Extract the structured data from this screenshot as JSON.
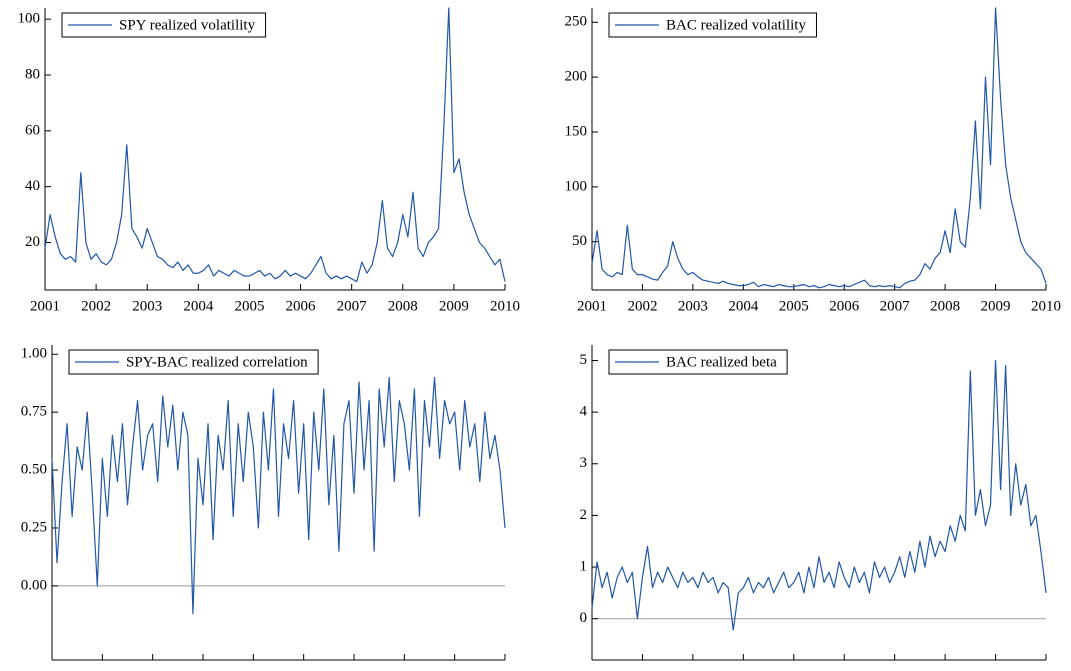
{
  "chart_data": [
    {
      "type": "line",
      "xlim": [
        2001,
        2010
      ],
      "xticks": [
        2001,
        2002,
        2003,
        2004,
        2005,
        2006,
        2007,
        2008,
        2009,
        2010
      ],
      "ylim": [
        3,
        104
      ],
      "yticks": [
        20,
        40,
        60,
        80,
        100
      ],
      "legend": "top-left",
      "zero_line": false,
      "x": [
        2001.0,
        2001.1,
        2001.2,
        2001.3,
        2001.4,
        2001.5,
        2001.6,
        2001.7,
        2001.8,
        2001.9,
        2002.0,
        2002.1,
        2002.2,
        2002.3,
        2002.4,
        2002.5,
        2002.6,
        2002.7,
        2002.8,
        2002.9,
        2003.0,
        2003.1,
        2003.2,
        2003.3,
        2003.4,
        2003.5,
        2003.6,
        2003.7,
        2003.8,
        2003.9,
        2004.0,
        2004.1,
        2004.2,
        2004.3,
        2004.4,
        2004.5,
        2004.6,
        2004.7,
        2004.8,
        2004.9,
        2005.0,
        2005.1,
        2005.2,
        2005.3,
        2005.4,
        2005.5,
        2005.6,
        2005.7,
        2005.8,
        2005.9,
        2006.0,
        2006.1,
        2006.2,
        2006.3,
        2006.4,
        2006.5,
        2006.6,
        2006.7,
        2006.8,
        2006.9,
        2007.0,
        2007.1,
        2007.2,
        2007.3,
        2007.4,
        2007.5,
        2007.6,
        2007.7,
        2007.8,
        2007.9,
        2008.0,
        2008.1,
        2008.2,
        2008.3,
        2008.4,
        2008.5,
        2008.6,
        2008.7,
        2008.8,
        2008.9,
        2009.0,
        2009.1,
        2009.2,
        2009.3,
        2009.4,
        2009.5,
        2009.6,
        2009.7,
        2009.8,
        2009.9,
        2010.0
      ],
      "series": [
        {
          "name": "SPY realized volatility",
          "color": "#2157a6",
          "values": [
            18,
            30,
            22,
            16,
            14,
            15,
            13,
            45,
            20,
            14,
            16,
            13,
            12,
            14,
            20,
            30,
            55,
            25,
            22,
            18,
            25,
            20,
            15,
            14,
            12,
            11,
            13,
            10,
            12,
            9,
            9,
            10,
            12,
            8,
            10,
            9,
            8,
            10,
            9,
            8,
            8,
            9,
            10,
            8,
            9,
            7,
            8,
            10,
            8,
            9,
            8,
            7,
            9,
            12,
            15,
            9,
            7,
            8,
            7,
            8,
            7,
            6,
            13,
            9,
            12,
            20,
            35,
            18,
            15,
            20,
            30,
            22,
            38,
            18,
            15,
            20,
            22,
            25,
            60,
            104,
            45,
            50,
            38,
            30,
            25,
            20,
            18,
            15,
            12,
            14,
            6
          ]
        }
      ]
    },
    {
      "type": "line",
      "xlim": [
        2001,
        2010
      ],
      "xticks": [
        2001,
        2002,
        2003,
        2004,
        2005,
        2006,
        2007,
        2008,
        2009,
        2010
      ],
      "ylim": [
        6,
        263
      ],
      "yticks": [
        50,
        100,
        150,
        200,
        250
      ],
      "legend": "top-left",
      "zero_line": false,
      "x": [
        2001.0,
        2001.1,
        2001.2,
        2001.3,
        2001.4,
        2001.5,
        2001.6,
        2001.7,
        2001.8,
        2001.9,
        2002.0,
        2002.1,
        2002.2,
        2002.3,
        2002.4,
        2002.5,
        2002.6,
        2002.7,
        2002.8,
        2002.9,
        2003.0,
        2003.1,
        2003.2,
        2003.3,
        2003.4,
        2003.5,
        2003.6,
        2003.7,
        2003.8,
        2003.9,
        2004.0,
        2004.1,
        2004.2,
        2004.3,
        2004.4,
        2004.5,
        2004.6,
        2004.7,
        2004.8,
        2004.9,
        2005.0,
        2005.1,
        2005.2,
        2005.3,
        2005.4,
        2005.5,
        2005.6,
        2005.7,
        2005.8,
        2005.9,
        2006.0,
        2006.1,
        2006.2,
        2006.3,
        2006.4,
        2006.5,
        2006.6,
        2006.7,
        2006.8,
        2006.9,
        2007.0,
        2007.1,
        2007.2,
        2007.3,
        2007.4,
        2007.5,
        2007.6,
        2007.7,
        2007.8,
        2007.9,
        2008.0,
        2008.1,
        2008.2,
        2008.3,
        2008.4,
        2008.5,
        2008.6,
        2008.7,
        2008.8,
        2008.9,
        2009.0,
        2009.1,
        2009.2,
        2009.3,
        2009.4,
        2009.5,
        2009.6,
        2009.7,
        2009.8,
        2009.9,
        2010.0
      ],
      "series": [
        {
          "name": "BAC realized volatility",
          "color": "#2157a6",
          "values": [
            30,
            60,
            25,
            20,
            18,
            22,
            20,
            65,
            25,
            20,
            20,
            18,
            16,
            15,
            22,
            28,
            50,
            35,
            25,
            20,
            22,
            18,
            15,
            14,
            13,
            12,
            14,
            12,
            11,
            10,
            10,
            11,
            13,
            9,
            11,
            10,
            9,
            11,
            10,
            9,
            9,
            10,
            11,
            9,
            10,
            8,
            9,
            11,
            10,
            9,
            10,
            9,
            11,
            13,
            15,
            10,
            9,
            10,
            9,
            10,
            9,
            8,
            12,
            14,
            15,
            20,
            30,
            25,
            35,
            40,
            60,
            40,
            80,
            50,
            45,
            90,
            160,
            80,
            200,
            120,
            263,
            180,
            120,
            90,
            70,
            50,
            40,
            35,
            30,
            25,
            12
          ]
        }
      ]
    },
    {
      "type": "line",
      "xlim": [
        2001,
        2010
      ],
      "xticks": [
        2001,
        2002,
        2003,
        2004,
        2005,
        2006,
        2007,
        2008,
        2009,
        2010
      ],
      "ylim": [
        -0.32,
        1.04
      ],
      "yticks": [
        {
          "value": 0,
          "label": "0.00"
        },
        {
          "value": 0.25,
          "label": "0.25"
        },
        {
          "value": 0.5,
          "label": "0.50"
        },
        {
          "value": 0.75,
          "label": "0.75"
        },
        {
          "value": 1,
          "label": "1.00"
        }
      ],
      "legend": "top-left",
      "zero_line": true,
      "x": [
        2001.0,
        2001.1,
        2001.2,
        2001.3,
        2001.4,
        2001.5,
        2001.6,
        2001.7,
        2001.8,
        2001.9,
        2002.0,
        2002.1,
        2002.2,
        2002.3,
        2002.4,
        2002.5,
        2002.6,
        2002.7,
        2002.8,
        2002.9,
        2003.0,
        2003.1,
        2003.2,
        2003.3,
        2003.4,
        2003.5,
        2003.6,
        2003.7,
        2003.8,
        2003.9,
        2004.0,
        2004.1,
        2004.2,
        2004.3,
        2004.4,
        2004.5,
        2004.6,
        2004.7,
        2004.8,
        2004.9,
        2005.0,
        2005.1,
        2005.2,
        2005.3,
        2005.4,
        2005.5,
        2005.6,
        2005.7,
        2005.8,
        2005.9,
        2006.0,
        2006.1,
        2006.2,
        2006.3,
        2006.4,
        2006.5,
        2006.6,
        2006.7,
        2006.8,
        2006.9,
        2007.0,
        2007.1,
        2007.2,
        2007.3,
        2007.4,
        2007.5,
        2007.6,
        2007.7,
        2007.8,
        2007.9,
        2008.0,
        2008.1,
        2008.2,
        2008.3,
        2008.4,
        2008.5,
        2008.6,
        2008.7,
        2008.8,
        2008.9,
        2009.0,
        2009.1,
        2009.2,
        2009.3,
        2009.4,
        2009.5,
        2009.6,
        2009.7,
        2009.8,
        2009.9,
        2010.0
      ],
      "series": [
        {
          "name": "SPY-BAC realized correlation",
          "color": "#2157a6",
          "values": [
            0.55,
            0.1,
            0.45,
            0.7,
            0.3,
            0.6,
            0.5,
            0.75,
            0.4,
            0.0,
            0.55,
            0.3,
            0.65,
            0.45,
            0.7,
            0.35,
            0.6,
            0.8,
            0.5,
            0.65,
            0.7,
            0.45,
            0.82,
            0.6,
            0.78,
            0.5,
            0.75,
            0.65,
            -0.12,
            0.55,
            0.35,
            0.7,
            0.2,
            0.65,
            0.5,
            0.8,
            0.3,
            0.7,
            0.45,
            0.75,
            0.6,
            0.25,
            0.75,
            0.5,
            0.85,
            0.3,
            0.7,
            0.55,
            0.8,
            0.4,
            0.7,
            0.2,
            0.75,
            0.5,
            0.85,
            0.35,
            0.65,
            0.15,
            0.7,
            0.8,
            0.4,
            0.88,
            0.5,
            0.8,
            0.15,
            0.85,
            0.6,
            0.9,
            0.45,
            0.8,
            0.7,
            0.5,
            0.85,
            0.3,
            0.8,
            0.6,
            0.9,
            0.55,
            0.8,
            0.7,
            0.75,
            0.5,
            0.8,
            0.6,
            0.7,
            0.45,
            0.75,
            0.55,
            0.65,
            0.5,
            0.25
          ]
        }
      ]
    },
    {
      "type": "line",
      "xlim": [
        2001,
        2010
      ],
      "xticks": [
        2001,
        2002,
        2003,
        2004,
        2005,
        2006,
        2007,
        2008,
        2009,
        2010
      ],
      "ylim": [
        -0.8,
        5.3
      ],
      "yticks": [
        0,
        1,
        2,
        3,
        4,
        5
      ],
      "legend": "top-left",
      "zero_line": true,
      "x": [
        2001.0,
        2001.1,
        2001.2,
        2001.3,
        2001.4,
        2001.5,
        2001.6,
        2001.7,
        2001.8,
        2001.9,
        2002.0,
        2002.1,
        2002.2,
        2002.3,
        2002.4,
        2002.5,
        2002.6,
        2002.7,
        2002.8,
        2002.9,
        2003.0,
        2003.1,
        2003.2,
        2003.3,
        2003.4,
        2003.5,
        2003.6,
        2003.7,
        2003.8,
        2003.9,
        2004.0,
        2004.1,
        2004.2,
        2004.3,
        2004.4,
        2004.5,
        2004.6,
        2004.7,
        2004.8,
        2004.9,
        2005.0,
        2005.1,
        2005.2,
        2005.3,
        2005.4,
        2005.5,
        2005.6,
        2005.7,
        2005.8,
        2005.9,
        2006.0,
        2006.1,
        2006.2,
        2006.3,
        2006.4,
        2006.5,
        2006.6,
        2006.7,
        2006.8,
        2006.9,
        2007.0,
        2007.1,
        2007.2,
        2007.3,
        2007.4,
        2007.5,
        2007.6,
        2007.7,
        2007.8,
        2007.9,
        2008.0,
        2008.1,
        2008.2,
        2008.3,
        2008.4,
        2008.5,
        2008.6,
        2008.7,
        2008.8,
        2008.9,
        2009.0,
        2009.1,
        2009.2,
        2009.3,
        2009.4,
        2009.5,
        2009.6,
        2009.7,
        2009.8,
        2009.9,
        2010.0
      ],
      "series": [
        {
          "name": "BAC realized beta",
          "color": "#2157a6",
          "values": [
            0.2,
            1.1,
            0.6,
            0.9,
            0.4,
            0.8,
            1.0,
            0.7,
            0.9,
            0.0,
            0.8,
            1.4,
            0.6,
            0.9,
            0.7,
            1.0,
            0.8,
            0.6,
            0.9,
            0.7,
            0.8,
            0.6,
            0.9,
            0.7,
            0.8,
            0.5,
            0.7,
            0.6,
            -0.22,
            0.5,
            0.6,
            0.8,
            0.5,
            0.7,
            0.6,
            0.8,
            0.5,
            0.7,
            0.9,
            0.6,
            0.7,
            0.9,
            0.5,
            1.0,
            0.6,
            1.2,
            0.7,
            0.9,
            0.6,
            1.1,
            0.8,
            0.6,
            1.0,
            0.7,
            0.9,
            0.5,
            1.1,
            0.8,
            1.0,
            0.7,
            0.9,
            1.2,
            0.8,
            1.3,
            0.9,
            1.5,
            1.0,
            1.6,
            1.2,
            1.5,
            1.3,
            1.8,
            1.5,
            2.0,
            1.7,
            4.8,
            2.0,
            2.5,
            1.8,
            2.2,
            5.0,
            2.5,
            4.9,
            2.0,
            3.0,
            2.2,
            2.6,
            1.8,
            2.0,
            1.3,
            0.5
          ]
        }
      ]
    }
  ]
}
